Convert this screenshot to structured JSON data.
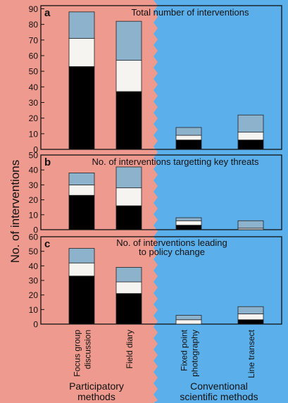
{
  "colors": {
    "participatory_bg": "#ee9a8e",
    "conventional_bg": "#5bb0ec",
    "stack_bottom": "#000000",
    "stack_middle": "#f6f4f0",
    "stack_top": "#8db2cc",
    "axis": "#111111"
  },
  "y_axis_title": "No. of interventions",
  "categories": [
    "Focus group discussion",
    "Field diary",
    "Fixed point photography",
    "Line transect"
  ],
  "category_labels": [
    [
      "Focus group",
      "discussion"
    ],
    [
      "Field diary"
    ],
    [
      "Fixed point",
      "photography"
    ],
    [
      "Line transect"
    ]
  ],
  "group_labels": [
    {
      "lines": [
        "Participatory",
        "methods"
      ]
    },
    {
      "lines": [
        "Conventional",
        "scientific methods"
      ]
    }
  ],
  "chart_data": [
    {
      "type": "bar",
      "stacked": true,
      "panel_letter": "a",
      "title": "Total number of interventions",
      "ylim": [
        0,
        92
      ],
      "yticks": [
        0,
        10,
        20,
        30,
        40,
        50,
        60,
        70,
        80,
        90
      ],
      "categories": [
        "Focus group discussion",
        "Field diary",
        "Fixed point photography",
        "Line transect"
      ],
      "series": [
        {
          "values": [
            53,
            37,
            6,
            6
          ]
        },
        {
          "values": [
            18,
            20,
            3,
            5
          ]
        },
        {
          "values": [
            17,
            25,
            5,
            11
          ]
        }
      ]
    },
    {
      "type": "bar",
      "stacked": true,
      "panel_letter": "b",
      "title": "No. of interventions targetting key threats",
      "ylim": [
        0,
        50
      ],
      "yticks": [
        0,
        10,
        20,
        30,
        40,
        50
      ],
      "categories": [
        "Focus group discussion",
        "Field diary",
        "Fixed point photography",
        "Line transect"
      ],
      "series": [
        {
          "values": [
            23,
            16,
            3,
            0
          ]
        },
        {
          "values": [
            7,
            12,
            3,
            1
          ]
        },
        {
          "values": [
            8,
            14,
            2,
            5
          ]
        }
      ]
    },
    {
      "type": "bar",
      "stacked": true,
      "panel_letter": "c",
      "title": "No. of interventions leading to policy change",
      "title_lines": [
        "No. of interventions leading",
        "to policy change"
      ],
      "ylim": [
        0,
        60
      ],
      "yticks": [
        0,
        10,
        20,
        30,
        40,
        50,
        60
      ],
      "categories": [
        "Focus group discussion",
        "Field diary",
        "Fixed point photography",
        "Line transect"
      ],
      "series": [
        {
          "values": [
            33,
            21,
            0,
            3
          ]
        },
        {
          "values": [
            9,
            8,
            3,
            4
          ]
        },
        {
          "values": [
            10,
            10,
            3,
            5
          ]
        }
      ]
    }
  ]
}
